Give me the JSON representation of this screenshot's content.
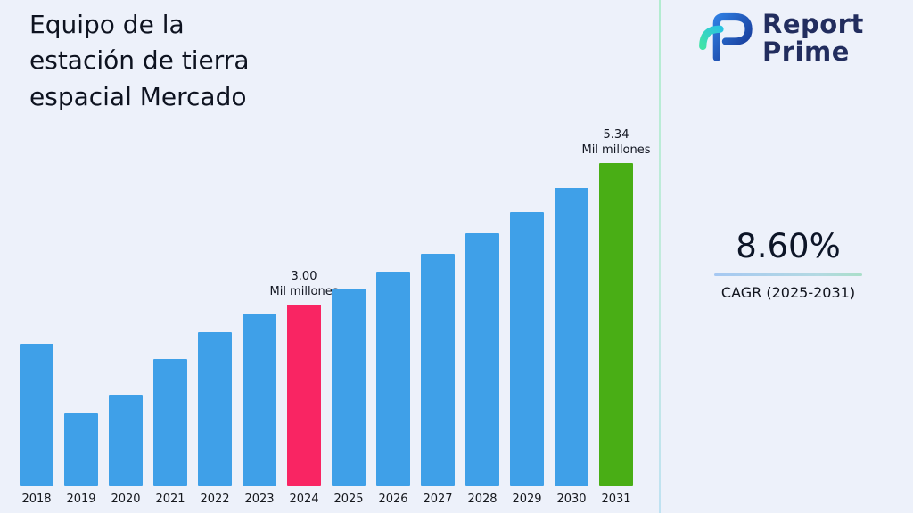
{
  "header": {
    "title": "Equipo de la estación de tierra espacial Mercado"
  },
  "brand": {
    "name_line1": "Report",
    "name_line2": "Prime",
    "logo_icon": "report-prime-logo",
    "navy": "#222d5e",
    "blue": "#2a6fd4",
    "teal": "#35d9b0"
  },
  "stats": {
    "cagr_value": "8.60%",
    "cagr_label": "CAGR (2025-2031)"
  },
  "chart_data": {
    "type": "bar",
    "title": "Equipo de la estación de tierra espacial Mercado",
    "unit": "Mil millones",
    "categories": [
      "2018",
      "2019",
      "2020",
      "2021",
      "2022",
      "2023",
      "2024",
      "2025",
      "2026",
      "2027",
      "2028",
      "2029",
      "2030",
      "2031"
    ],
    "values": [
      2.35,
      1.2,
      1.5,
      2.1,
      2.55,
      2.85,
      3.0,
      3.26,
      3.54,
      3.84,
      4.17,
      4.53,
      4.92,
      5.34
    ],
    "ylim": [
      0,
      5.5
    ],
    "grid": false,
    "legend": "none",
    "colors": {
      "default": "#3fa0e8"
    },
    "annotations": [
      {
        "category": "2024",
        "value_label": "3.00",
        "unit_label": "Mil millones",
        "color": "#f92563"
      },
      {
        "category": "2031",
        "value_label": "5.34",
        "unit_label": "Mil millones",
        "color": "#49ae15"
      }
    ]
  }
}
